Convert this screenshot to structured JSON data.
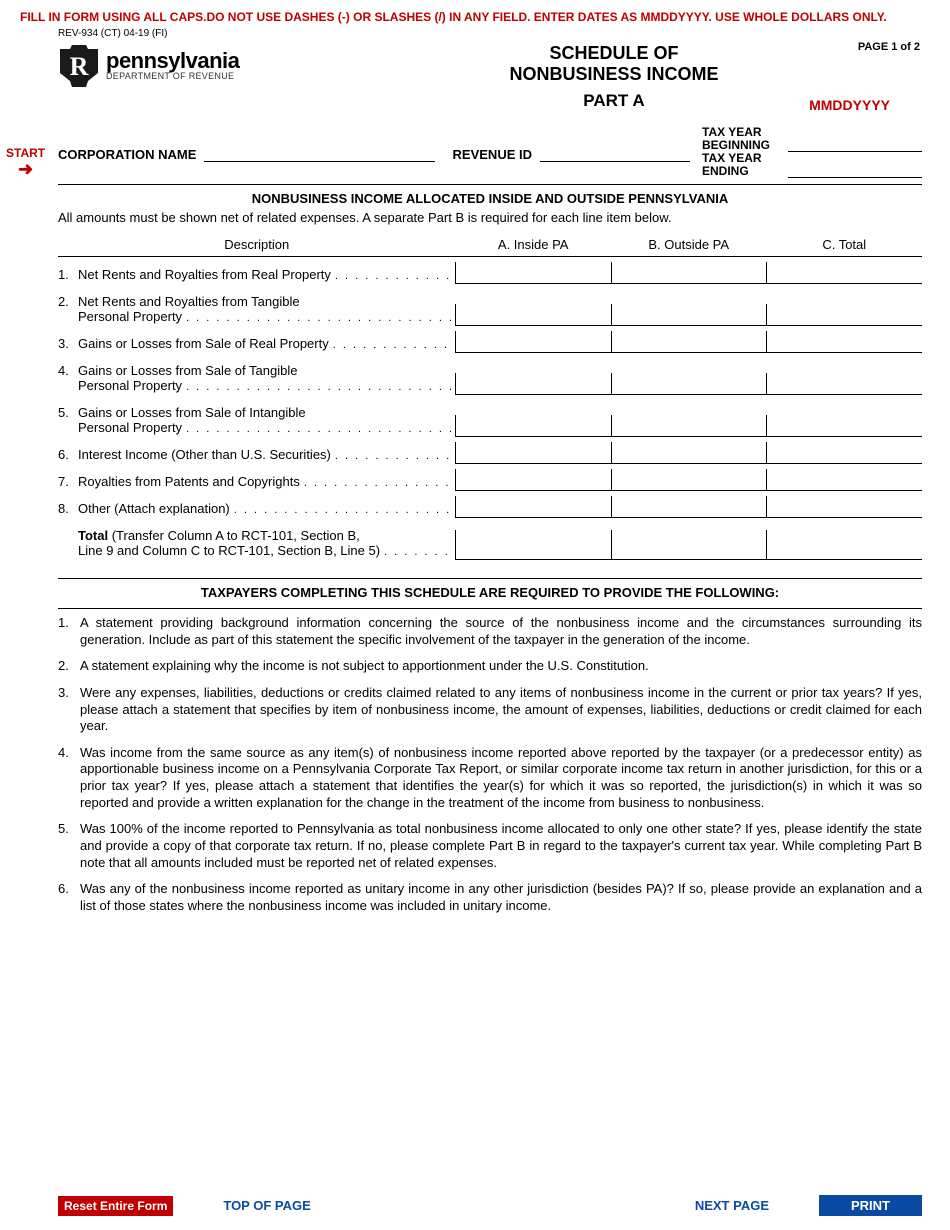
{
  "warning": "FILL IN FORM USING ALL CAPS.DO NOT USE DASHES (-) OR SLASHES (/) IN ANY FIELD.  ENTER DATES AS MMDDYYYY.  USE WHOLE DOLLARS ONLY.",
  "rev_code": "REV-934 (CT) 04-19 (FI)",
  "page_label": "PAGE 1 of 2",
  "logo": {
    "state": "pennsylvania",
    "dept": "DEPARTMENT OF REVENUE"
  },
  "title": {
    "line1": "SCHEDULE OF",
    "line2": "NONBUSINESS INCOME",
    "line3": "PART A"
  },
  "mmdd_hint": "MMDDYYYY",
  "start_label": "START",
  "tax_year": {
    "begin_label": "TAX YEAR BEGINNING",
    "end_label": "TAX YEAR ENDING"
  },
  "corp_name_label": "CORPORATION NAME",
  "revenue_id_label": "REVENUE ID",
  "section_title": "NONBUSINESS INCOME ALLOCATED INSIDE AND OUTSIDE PENNSYLVANIA",
  "section_sub": "All amounts must be shown net of related expenses. A separate Part B is required for each line item below.",
  "columns": {
    "desc": "Description",
    "a": "A. Inside PA",
    "b": "B. Outside PA",
    "c": "C. Total"
  },
  "rows": [
    {
      "num": "1.",
      "text": "Net Rents and Royalties from Real Property"
    },
    {
      "num": "2.",
      "text": "Net Rents and Royalties from Tangible",
      "text2": "Personal Property"
    },
    {
      "num": "3.",
      "text": "Gains or Losses from Sale of Real Property"
    },
    {
      "num": "4.",
      "text": "Gains or Losses from Sale of Tangible",
      "text2": "Personal Property"
    },
    {
      "num": "5.",
      "text": "Gains or Losses from Sale of Intangible",
      "text2": "Personal Property"
    },
    {
      "num": "6.",
      "text": "Interest Income (Other than U.S. Securities)"
    },
    {
      "num": "7.",
      "text": "Royalties from Patents and Copyrights"
    },
    {
      "num": "8.",
      "text": "Other (Attach explanation)"
    }
  ],
  "total_row": {
    "bold_text": "Total",
    "rest_text": " (Transfer Column A to RCT-101, Section B,",
    "text2": "Line 9 and Column C to RCT-101, Section B, Line 5)"
  },
  "req_title": "TAXPAYERS COMPLETING THIS SCHEDULE ARE REQUIRED TO PROVIDE THE FOLLOWING:",
  "requirements": [
    "A statement providing background information concerning the source of the nonbusiness income and the circumstances surrounding its generation. Include as part of this statement the specific involvement of the taxpayer in the generation of the income.",
    "A statement explaining why the income is not subject to apportionment under the U.S. Constitution.",
    "Were any expenses, liabilities, deductions or credits claimed related to any items of nonbusiness income in the current or prior tax years? If yes, please attach a statement that specifies by item of nonbusiness income, the amount of expenses, liabilities, deductions or credit claimed for each year.",
    "Was income from the same source as any item(s) of nonbusiness income reported above reported by the taxpayer (or a predecessor entity) as apportionable business income on a Pennsylvania Corporate Tax Report, or similar corporate income tax return in another jurisdiction, for this or a prior tax year? If yes, please attach a statement that identifies the year(s) for which it was so reported, the jurisdiction(s) in which it was so reported and provide a written explanation for the change in the treatment of the income from business to nonbusiness.",
    "Was 100% of the income reported to Pennsylvania as total nonbusiness income allocated to only one other state? If yes, please identify the state and provide a copy of that corporate tax return. If no, please complete Part B in regard to the taxpayer's current tax year. While completing Part B note that all amounts included must be reported net of related expenses.",
    "Was any of the nonbusiness income reported as unitary income in any other jurisdiction (besides PA)? If so, please provide an explanation and a list of those states where the nonbusiness income was included in unitary income."
  ],
  "footer": {
    "reset": "Reset Entire Form",
    "top": "TOP OF PAGE",
    "next": "NEXT PAGE",
    "print": "PRINT"
  },
  "colors": {
    "red": "#c00000",
    "blue": "#0b4aa2",
    "black": "#000000",
    "white": "#ffffff"
  }
}
